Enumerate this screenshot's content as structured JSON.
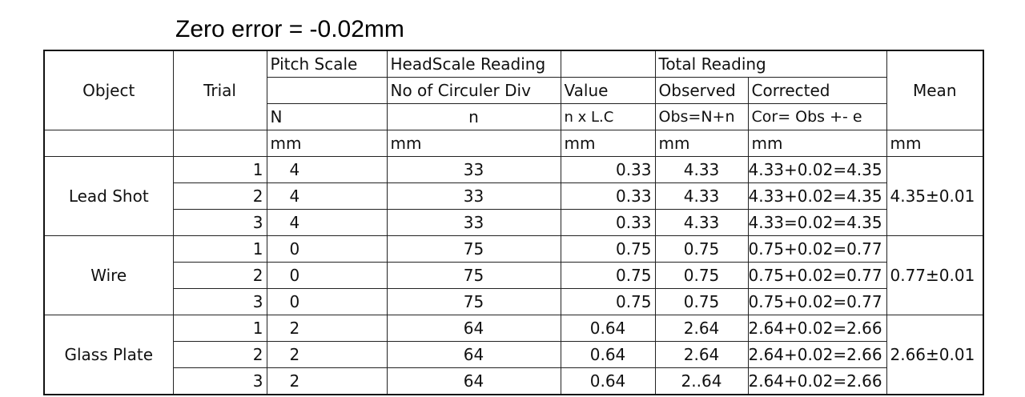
{
  "zero_error": "Zero error = -0.02mm",
  "headers": {
    "object": "Object",
    "trial": "Trial",
    "pitch_scale": "Pitch Scale",
    "headscale_reading": "HeadScale Reading",
    "total_reading": "Total Reading",
    "mean": "Mean",
    "no_of_div": "No of Circuler Div",
    "value": "Value",
    "observed": "Observed",
    "corrected": "Corrected",
    "n_big": "N",
    "n_small": "n",
    "n_lc": "n x L.C",
    "obs_formula": "Obs=N+n",
    "cor_formula": "Cor= Obs +- e"
  },
  "unit": "mm",
  "groups": [
    {
      "object": "Lead Shot",
      "mean": "4.35±0.01",
      "rows": [
        {
          "trial": "1",
          "N": "4",
          "n": "33",
          "value": "0.33",
          "observed": "4.33",
          "corrected": "4.33+0.02=4.35"
        },
        {
          "trial": "2",
          "N": "4",
          "n": "33",
          "value": "0.33",
          "observed": "4.33",
          "corrected": "4.33+0.02=4.35"
        },
        {
          "trial": "3",
          "N": "4",
          "n": "33",
          "value": "0.33",
          "observed": "4.33",
          "corrected": "4.33=0.02=4.35"
        }
      ]
    },
    {
      "object": "Wire",
      "mean": "0.77±0.01",
      "rows": [
        {
          "trial": "1",
          "N": "0",
          "n": "75",
          "value": "0.75",
          "observed": "0.75",
          "corrected": "0.75+0.02=0.77"
        },
        {
          "trial": "2",
          "N": "0",
          "n": "75",
          "value": "0.75",
          "observed": "0.75",
          "corrected": "0.75+0.02=0.77"
        },
        {
          "trial": "3",
          "N": "0",
          "n": "75",
          "value": "0.75",
          "observed": "0.75",
          "corrected": "0.75+0.02=0.77"
        }
      ]
    },
    {
      "object": "Glass Plate",
      "mean": "2.66±0.01",
      "rows": [
        {
          "trial": "1",
          "N": "2",
          "n": "64",
          "value": "0.64",
          "observed": "2.64",
          "corrected": "2.64+0.02=2.66"
        },
        {
          "trial": "2",
          "N": "2",
          "n": "64",
          "value": "0.64",
          "observed": "2.64",
          "corrected": "2.64+0.02=2.66"
        },
        {
          "trial": "3",
          "N": "2",
          "n": "64",
          "value": "0.64",
          "observed": "2..64",
          "corrected": "2.64+0.02=2.66"
        }
      ]
    }
  ]
}
